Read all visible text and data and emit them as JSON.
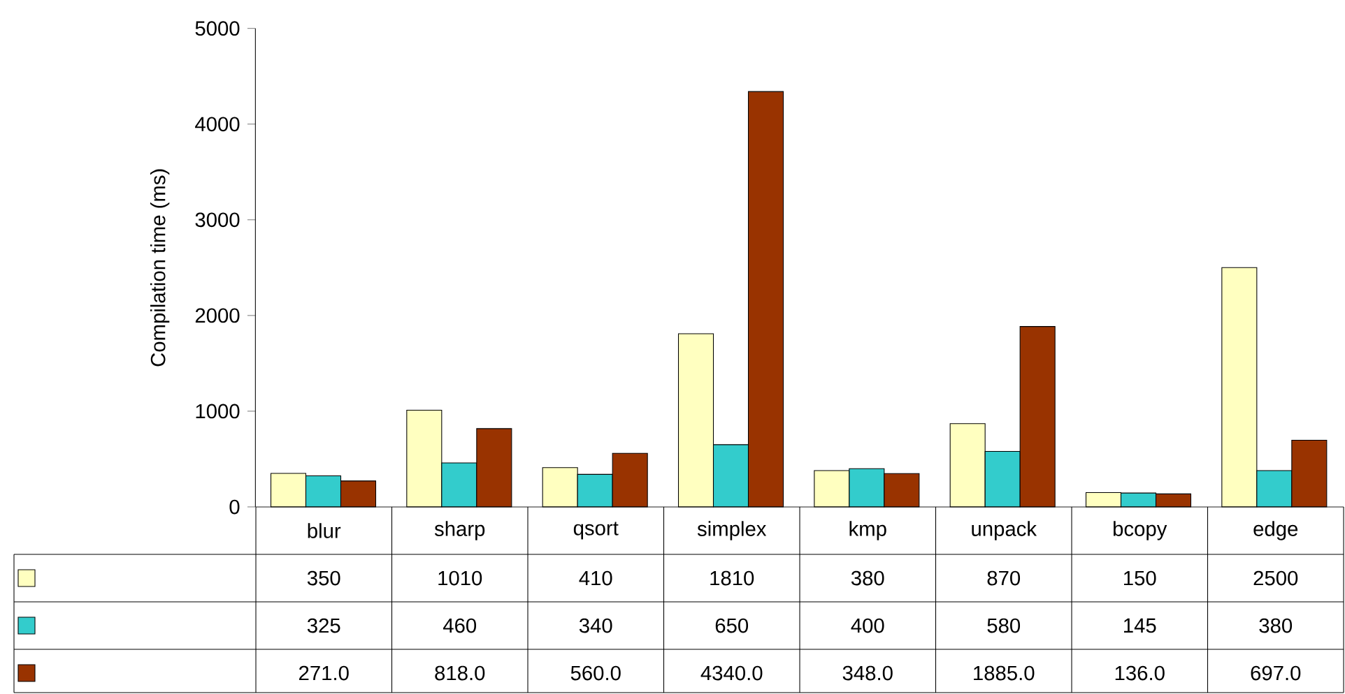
{
  "chart_data": {
    "type": "bar",
    "ylabel": "Compilation time (ms)",
    "categories": [
      "blur",
      "sharp",
      "qsort",
      "simplex",
      "kmp",
      "unpack",
      "bcopy",
      "edge"
    ],
    "series": [
      {
        "color": "#ffffc0",
        "values": [
          350,
          1010,
          410,
          1810,
          380,
          870,
          150,
          2500
        ],
        "value_labels": [
          "350",
          "1010",
          "410",
          "1810",
          "380",
          "870",
          "150",
          "2500"
        ]
      },
      {
        "color": "#33cccc",
        "values": [
          325,
          460,
          340,
          650,
          400,
          580,
          145,
          380
        ],
        "value_labels": [
          "325",
          "460",
          "340",
          "650",
          "400",
          "580",
          "145",
          "380"
        ]
      },
      {
        "color": "#993300",
        "values": [
          271.0,
          818.0,
          560.0,
          4340.0,
          348.0,
          1885.0,
          136.0,
          697.0
        ],
        "value_labels": [
          "271.0",
          "818.0",
          "560.0",
          "4340.0",
          "348.0",
          "1885.0",
          "136.0",
          "697.0"
        ]
      }
    ],
    "ylim": [
      0,
      5000
    ],
    "yticks": [
      0,
      1000,
      2000,
      3000,
      4000,
      5000
    ],
    "grid": false
  }
}
